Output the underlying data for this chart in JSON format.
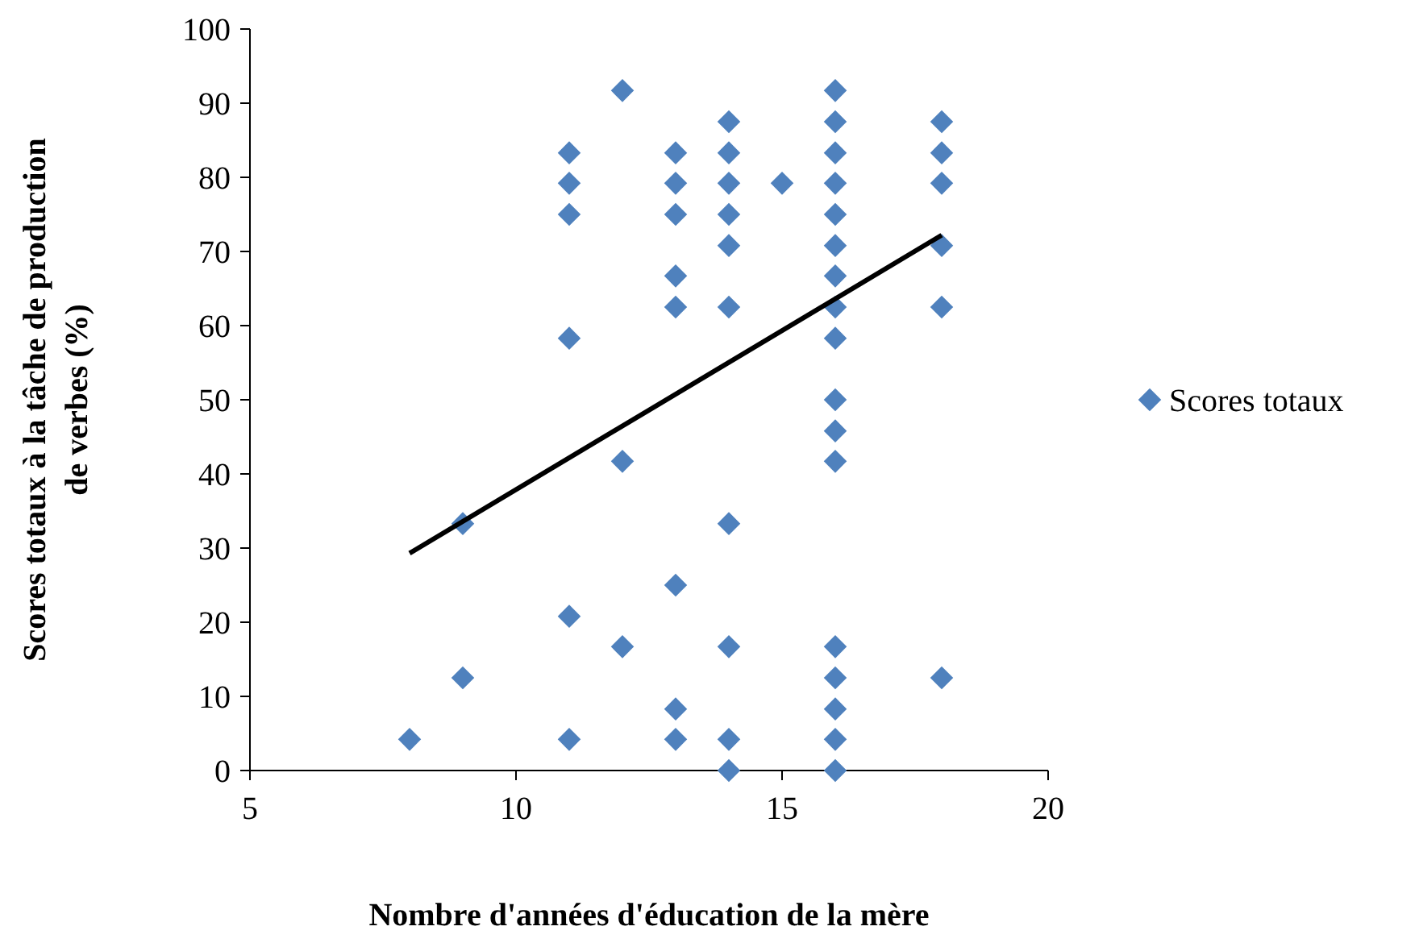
{
  "chart_data": {
    "type": "scatter",
    "xlabel": "Nombre d'années d'éducation de la mère",
    "ylabel": "Scores totaux à la tâche de production de verbes (%)",
    "xlim": [
      5,
      20
    ],
    "xticks": [
      5,
      10,
      15,
      20
    ],
    "ylim": [
      0,
      100
    ],
    "yticks": [
      0,
      10,
      20,
      30,
      40,
      50,
      60,
      70,
      80,
      90,
      100
    ],
    "grid": false,
    "legend": "right",
    "marker": "diamond",
    "series": [
      {
        "name": "Scores totaux",
        "color": "#4f81bd",
        "x": [
          8,
          9,
          9,
          11,
          11,
          11,
          11,
          11,
          11,
          12,
          12,
          12,
          13,
          13,
          13,
          13,
          13,
          13,
          13,
          13,
          14,
          14,
          14,
          14,
          14,
          14,
          14,
          14,
          14,
          14,
          15,
          16,
          16,
          16,
          16,
          16,
          16,
          16,
          16,
          16,
          16,
          16,
          16,
          16,
          16,
          16,
          16,
          16,
          18,
          18,
          18,
          18,
          18,
          18
        ],
        "values": [
          4.2,
          33.3,
          12.5,
          83.3,
          79.2,
          75,
          58.3,
          20.8,
          4.2,
          91.7,
          41.7,
          16.7,
          83.3,
          79.2,
          75,
          66.7,
          62.5,
          25,
          8.3,
          4.2,
          87.5,
          83.3,
          79.2,
          75,
          70.8,
          62.5,
          33.3,
          16.7,
          4.2,
          0,
          79.2,
          91.7,
          87.5,
          83.3,
          79.2,
          75,
          70.8,
          66.7,
          62.5,
          58.3,
          50,
          45.8,
          41.7,
          16.7,
          12.5,
          8.3,
          4.2,
          0,
          87.5,
          83.3,
          79.2,
          70.8,
          62.5,
          12.5
        ]
      },
      {
        "type": "line",
        "color": "#000000",
        "x": [
          8,
          18
        ],
        "values": [
          29.3,
          72.2
        ],
        "marker": "none"
      }
    ]
  }
}
